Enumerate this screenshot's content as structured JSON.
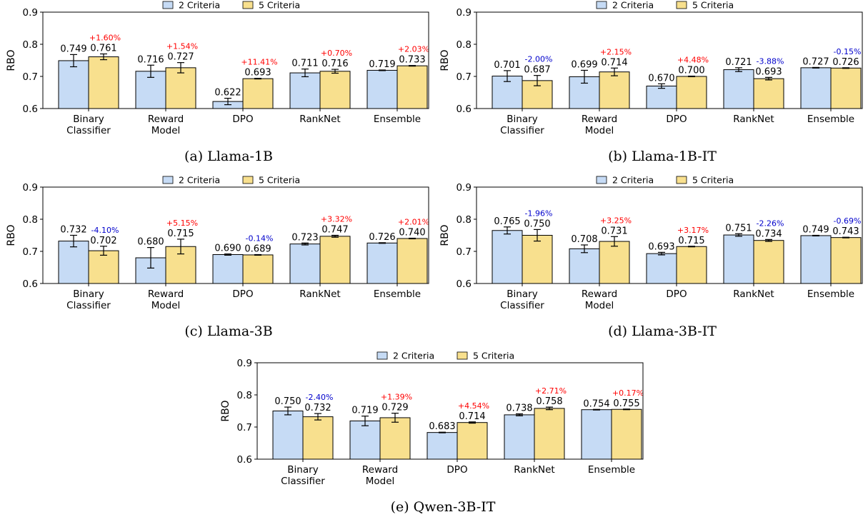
{
  "legend": {
    "series": [
      "2 Criteria",
      "5 Criteria"
    ],
    "colors": [
      "#c6dbf5",
      "#f8e08e"
    ]
  },
  "colors": {
    "increase": "#ff0000",
    "decrease": "#0000cc",
    "text": "#000000"
  },
  "chart_data": [
    {
      "type": "bar",
      "caption": "(a) Llama-1B",
      "categories": [
        "Binary\nClassifier",
        "Reward\nModel",
        "DPO",
        "RankNet",
        "Ensemble"
      ],
      "ylabel": "RBO",
      "ylim": [
        0.6,
        0.9
      ],
      "yticks": [
        "0.6",
        "0.7",
        "0.8",
        "0.9"
      ],
      "series": [
        {
          "name": "2 Criteria",
          "values": [
            0.749,
            0.716,
            0.622,
            0.711,
            0.719
          ],
          "labels": [
            "0.749",
            "0.716",
            "0.622",
            "0.711",
            "0.719"
          ],
          "errors": [
            0.019,
            0.019,
            0.01,
            0.012,
            0.001
          ]
        },
        {
          "name": "5 Criteria",
          "values": [
            0.761,
            0.727,
            0.693,
            0.716,
            0.733
          ],
          "labels": [
            "0.761",
            "0.727",
            "0.693",
            "0.716",
            "0.733"
          ],
          "errors": [
            0.009,
            0.016,
            0.001,
            0.006,
            0.001
          ]
        }
      ],
      "changes": [
        "+1.60%",
        "+1.54%",
        "+11.41%",
        "+0.70%",
        "+2.03%"
      ]
    },
    {
      "type": "bar",
      "caption": "(b) Llama-1B-IT",
      "categories": [
        "Binary\nClassifier",
        "Reward\nModel",
        "DPO",
        "RankNet",
        "Ensemble"
      ],
      "ylabel": "RBO",
      "ylim": [
        0.6,
        0.9
      ],
      "yticks": [
        "0.6",
        "0.7",
        "0.8",
        "0.9"
      ],
      "series": [
        {
          "name": "2 Criteria",
          "values": [
            0.701,
            0.699,
            0.67,
            0.721,
            0.727
          ],
          "labels": [
            "0.701",
            "0.699",
            "0.670",
            "0.721",
            "0.727"
          ],
          "errors": [
            0.017,
            0.02,
            0.007,
            0.006,
            0.001
          ]
        },
        {
          "name": "5 Criteria",
          "values": [
            0.687,
            0.714,
            0.7,
            0.693,
            0.726
          ],
          "labels": [
            "0.687",
            "0.714",
            "0.700",
            "0.693",
            "0.726"
          ],
          "errors": [
            0.016,
            0.012,
            0.001,
            0.004,
            0.001
          ]
        }
      ],
      "changes": [
        "-2.00%",
        "+2.15%",
        "+4.48%",
        "-3.88%",
        "-0.15%"
      ]
    },
    {
      "type": "bar",
      "caption": "(c) Llama-3B",
      "categories": [
        "Binary\nClassifier",
        "Reward\nModel",
        "DPO",
        "RankNet",
        "Ensemble"
      ],
      "ylabel": "RBO",
      "ylim": [
        0.6,
        0.9
      ],
      "yticks": [
        "0.6",
        "0.7",
        "0.8",
        "0.9"
      ],
      "series": [
        {
          "name": "2 Criteria",
          "values": [
            0.732,
            0.68,
            0.69,
            0.723,
            0.726
          ],
          "labels": [
            "0.732",
            "0.680",
            "0.690",
            "0.723",
            "0.726"
          ],
          "errors": [
            0.018,
            0.032,
            0.002,
            0.003,
            0.001
          ]
        },
        {
          "name": "5 Criteria",
          "values": [
            0.702,
            0.715,
            0.689,
            0.747,
            0.74
          ],
          "labels": [
            "0.702",
            "0.715",
            "0.689",
            "0.747",
            "0.740"
          ],
          "errors": [
            0.014,
            0.023,
            0.001,
            0.003,
            0.001
          ]
        }
      ],
      "changes": [
        "-4.10%",
        "+5.15%",
        "-0.14%",
        "+3.32%",
        "+2.01%"
      ]
    },
    {
      "type": "bar",
      "caption": "(d) Llama-3B-IT",
      "categories": [
        "Binary\nClassifier",
        "Reward\nModel",
        "DPO",
        "RankNet",
        "Ensemble"
      ],
      "ylabel": "RBO",
      "ylim": [
        0.6,
        0.9
      ],
      "yticks": [
        "0.6",
        "0.7",
        "0.8",
        "0.9"
      ],
      "series": [
        {
          "name": "2 Criteria",
          "values": [
            0.765,
            0.708,
            0.693,
            0.751,
            0.749
          ],
          "labels": [
            "0.765",
            "0.708",
            "0.693",
            "0.751",
            "0.749"
          ],
          "errors": [
            0.011,
            0.012,
            0.004,
            0.004,
            0.001
          ]
        },
        {
          "name": "5 Criteria",
          "values": [
            0.75,
            0.731,
            0.715,
            0.734,
            0.743
          ],
          "labels": [
            "0.750",
            "0.731",
            "0.715",
            "0.734",
            "0.743"
          ],
          "errors": [
            0.018,
            0.015,
            0.001,
            0.003,
            0.001
          ]
        }
      ],
      "changes": [
        "-1.96%",
        "+3.25%",
        "+3.17%",
        "-2.26%",
        "-0.69%"
      ]
    },
    {
      "type": "bar",
      "caption": "(e) Qwen-3B-IT",
      "categories": [
        "Binary\nClassifier",
        "Reward\nModel",
        "DPO",
        "RankNet",
        "Ensemble"
      ],
      "ylabel": "RBO",
      "ylim": [
        0.6,
        0.9
      ],
      "yticks": [
        "0.6",
        "0.7",
        "0.8",
        "0.9"
      ],
      "series": [
        {
          "name": "2 Criteria",
          "values": [
            0.75,
            0.719,
            0.683,
            0.738,
            0.754
          ],
          "labels": [
            "0.750",
            "0.719",
            "0.683",
            "0.738",
            "0.754"
          ],
          "errors": [
            0.012,
            0.015,
            0.001,
            0.003,
            0.001
          ]
        },
        {
          "name": "5 Criteria",
          "values": [
            0.732,
            0.729,
            0.714,
            0.758,
            0.755
          ],
          "labels": [
            "0.732",
            "0.729",
            "0.714",
            "0.758",
            "0.755"
          ],
          "errors": [
            0.01,
            0.014,
            0.002,
            0.004,
            0.001
          ]
        }
      ],
      "changes": [
        "-2.40%",
        "+1.39%",
        "+4.54%",
        "+2.71%",
        "+0.17%"
      ]
    }
  ]
}
